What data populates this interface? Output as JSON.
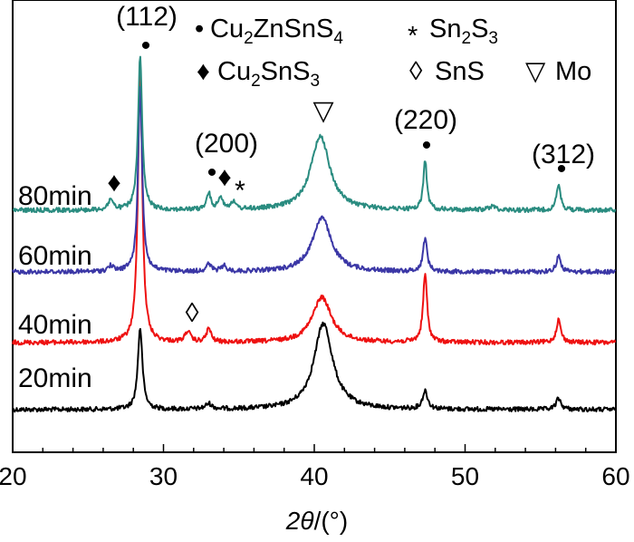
{
  "chart_data": {
    "type": "line",
    "xlabel_italic": "2θ",
    "xlabel_rest": "/(°)",
    "xlim": [
      20,
      60
    ],
    "xticks": [
      "20",
      "30",
      "40",
      "50",
      "60"
    ],
    "y_ticks_shown": false,
    "grid": false,
    "legend": {
      "placement": "top",
      "entries": [
        {
          "symbol": "•",
          "label": "Cu₂ZnSnS₄"
        },
        {
          "symbol": "*",
          "label": "Sn₂S₃"
        },
        {
          "symbol": "♦",
          "label": "Cu₂SnS₃"
        },
        {
          "symbol": "◊",
          "label": "SnS"
        },
        {
          "symbol": "▽",
          "label": "Mo"
        }
      ]
    },
    "series": [
      {
        "name": "20min",
        "color": "#000000",
        "baseline": 452,
        "peaks": [
          [
            28.45,
            90,
            0.18
          ],
          [
            33.0,
            6,
            0.25
          ],
          [
            40.6,
            95,
            0.75
          ],
          [
            47.35,
            20,
            0.2
          ],
          [
            56.2,
            12,
            0.2
          ]
        ]
      },
      {
        "name": "40min",
        "color": "#ee1111",
        "baseline": 378,
        "peaks": [
          [
            28.45,
            305,
            0.17
          ],
          [
            31.6,
            12,
            0.2
          ],
          [
            33.0,
            15,
            0.18
          ],
          [
            40.5,
            50,
            0.75
          ],
          [
            47.35,
            75,
            0.16
          ],
          [
            56.2,
            25,
            0.18
          ]
        ]
      },
      {
        "name": "60min",
        "color": "#3b37a6",
        "baseline": 300,
        "peaks": [
          [
            26.5,
            6,
            0.2
          ],
          [
            28.45,
            205,
            0.16
          ],
          [
            33.0,
            8,
            0.2
          ],
          [
            34.0,
            6,
            0.2
          ],
          [
            40.5,
            60,
            0.75
          ],
          [
            47.35,
            37,
            0.16
          ],
          [
            56.2,
            17,
            0.18
          ]
        ]
      },
      {
        "name": "80min",
        "color": "#2a8c80",
        "baseline": 232,
        "peaks": [
          [
            26.5,
            12,
            0.18
          ],
          [
            28.45,
            170,
            0.16
          ],
          [
            33.0,
            18,
            0.16
          ],
          [
            33.8,
            14,
            0.18
          ],
          [
            34.6,
            8,
            0.2
          ],
          [
            40.4,
            82,
            0.75
          ],
          [
            47.35,
            55,
            0.14
          ],
          [
            51.8,
            4,
            0.3
          ],
          [
            56.2,
            28,
            0.16
          ]
        ]
      }
    ],
    "peak_annotations": [
      {
        "label": "(112)",
        "marker": "•",
        "x": 28.4
      },
      {
        "label": "(200)",
        "marker": "•",
        "x": 33.0
      },
      {
        "label": "(220)",
        "marker": "•",
        "x": 47.3
      },
      {
        "label": "(312)",
        "marker": "•",
        "x": 56.2
      }
    ],
    "phase_markers": [
      {
        "symbol": "▽",
        "x": 40.5
      },
      {
        "symbol": "♦",
        "x": 26.5
      },
      {
        "symbol": "♦",
        "x": 33.9
      },
      {
        "symbol": "*",
        "x": 34.7
      },
      {
        "symbol": "◊",
        "x": 31.6
      }
    ]
  }
}
